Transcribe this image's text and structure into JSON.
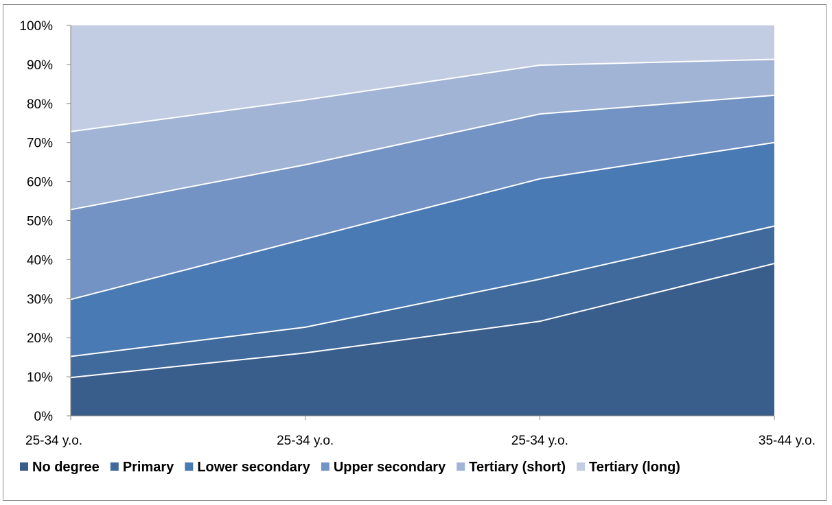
{
  "chart_data": {
    "type": "area",
    "stacked": true,
    "percent": true,
    "categories": [
      "25-34 y.o.",
      "25-34 y.o.",
      "25-34 y.o.",
      "35-44 y.o."
    ],
    "series": [
      {
        "name": "No degree",
        "color": "#3a5e8c",
        "values": [
          9.8,
          16.1,
          24.2,
          39.0
        ]
      },
      {
        "name": "Primary",
        "color": "#40699c",
        "values": [
          5.4,
          6.6,
          10.8,
          9.6
        ]
      },
      {
        "name": "Lower secondary",
        "color": "#4a7ab4",
        "values": [
          14.6,
          22.6,
          25.7,
          21.4
        ]
      },
      {
        "name": "Upper secondary",
        "color": "#7393c4",
        "values": [
          23.0,
          19.0,
          16.6,
          12.1
        ]
      },
      {
        "name": "Tertiary (short)",
        "color": "#a1b4d6",
        "values": [
          20.0,
          16.6,
          12.5,
          9.2
        ]
      },
      {
        "name": "Tertiary (long)",
        "color": "#c2cde3",
        "values": [
          27.2,
          19.1,
          10.2,
          8.7
        ]
      }
    ],
    "y_ticks": [
      "0%",
      "10%",
      "20%",
      "30%",
      "40%",
      "50%",
      "60%",
      "70%",
      "80%",
      "90%",
      "100%"
    ],
    "ylim": [
      0,
      100
    ],
    "grid": false,
    "legend_position": "bottom"
  }
}
